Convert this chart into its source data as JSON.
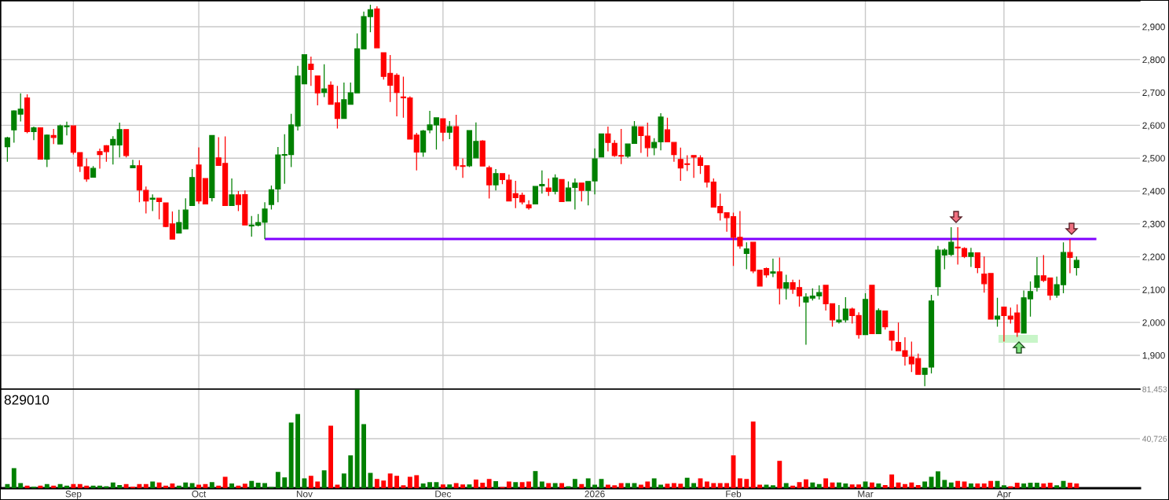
{
  "chart_data": [
    {
      "type": "candlestick",
      "categories": [
        null,
        null,
        null,
        null,
        null,
        null,
        null,
        null,
        null,
        null,
        null,
        null,
        null,
        null,
        null,
        null,
        null,
        null,
        null,
        null,
        null,
        null,
        null,
        null,
        null,
        null,
        null,
        null,
        null,
        null,
        null,
        null,
        null,
        null,
        null,
        null,
        null,
        null,
        null,
        null,
        null,
        null,
        null,
        null,
        null,
        null,
        null,
        null,
        null,
        null,
        null,
        null,
        null,
        null,
        null,
        null,
        null,
        null,
        null,
        null,
        null,
        null,
        null,
        null,
        null,
        null,
        null,
        null,
        null,
        null,
        null,
        null,
        null,
        null,
        null,
        null,
        null,
        null,
        null,
        null,
        null,
        null,
        null,
        null,
        null,
        null,
        null,
        null,
        null,
        null,
        null,
        null,
        null,
        null,
        null,
        null,
        null,
        null,
        null,
        null,
        null,
        null,
        null,
        null,
        null,
        null,
        null,
        null,
        null,
        null,
        null,
        null,
        null,
        null,
        null,
        null,
        null,
        null,
        null,
        null,
        null,
        null,
        null,
        null,
        null,
        null,
        null,
        null,
        null,
        null,
        null,
        null,
        null,
        null,
        null,
        null,
        null,
        null,
        null,
        null,
        null,
        null,
        null,
        null,
        null,
        null,
        null,
        null,
        null,
        null,
        null,
        null,
        null,
        null,
        null,
        null,
        null,
        null,
        null,
        null,
        null,
        null,
        null,
        null,
        null,
        null,
        null,
        null,
        null,
        null,
        null,
        null
      ],
      "ohlc": [
        [
          2535,
          2565,
          2489,
          2562
        ],
        [
          2586,
          2646,
          2547,
          2644
        ],
        [
          2634,
          2697,
          2612,
          2649
        ],
        [
          2683,
          2694,
          2576,
          2581
        ],
        [
          2581,
          2596,
          2555,
          2592
        ],
        [
          2592,
          2592,
          2497,
          2497
        ],
        [
          2497,
          2572,
          2473,
          2570
        ],
        [
          2569,
          2589,
          2543,
          2563
        ],
        [
          2543,
          2602,
          2543,
          2598
        ],
        [
          2596,
          2611,
          2569,
          2598
        ],
        [
          2598,
          2598,
          2511,
          2518
        ],
        [
          2517,
          2517,
          2458,
          2476
        ],
        [
          2474,
          2499,
          2428,
          2437
        ],
        [
          2442,
          2476,
          2442,
          2469
        ],
        [
          2520,
          2529,
          2468,
          2511
        ],
        [
          2538,
          2540,
          2489,
          2520
        ],
        [
          2540,
          2567,
          2481,
          2557
        ],
        [
          2540,
          2608,
          2502,
          2587
        ],
        [
          2587,
          2587,
          2502,
          2508
        ],
        [
          2471,
          2495,
          2471,
          2477
        ],
        [
          2477,
          2494,
          2366,
          2403
        ],
        [
          2402,
          2414,
          2332,
          2370
        ],
        [
          2375,
          2390,
          2339,
          2378
        ],
        [
          2378,
          2378,
          2314,
          2368
        ],
        [
          2364,
          2364,
          2290,
          2292
        ],
        [
          2300,
          2338,
          2254,
          2254
        ],
        [
          2272,
          2343,
          2272,
          2304
        ],
        [
          2285,
          2378,
          2285,
          2342
        ],
        [
          2356,
          2467,
          2356,
          2441
        ],
        [
          2479,
          2533,
          2361,
          2370
        ],
        [
          2438,
          2438,
          2361,
          2361
        ],
        [
          2380,
          2569,
          2368,
          2569
        ],
        [
          2501,
          2564,
          2478,
          2478
        ],
        [
          2484,
          2566,
          2356,
          2356
        ],
        [
          2356,
          2438,
          2356,
          2388
        ],
        [
          2388,
          2400,
          2339,
          2359
        ],
        [
          2389,
          2402,
          2297,
          2297
        ],
        [
          2294,
          2324,
          2261,
          2296
        ],
        [
          2296,
          2330,
          2292,
          2304
        ],
        [
          2305,
          2366,
          2254,
          2345
        ],
        [
          2359,
          2417,
          2344,
          2404
        ],
        [
          2406,
          2534,
          2366,
          2510
        ],
        [
          2509,
          2573,
          2422,
          2511
        ],
        [
          2511,
          2635,
          2473,
          2601
        ],
        [
          2598,
          2781,
          2584,
          2750
        ],
        [
          2726,
          2815,
          2726,
          2815
        ],
        [
          2786,
          2809,
          2720,
          2770
        ],
        [
          2750,
          2750,
          2661,
          2699
        ],
        [
          2700,
          2786,
          2686,
          2711
        ],
        [
          2722,
          2734,
          2664,
          2664
        ],
        [
          2668,
          2720,
          2590,
          2621
        ],
        [
          2621,
          2730,
          2621,
          2678
        ],
        [
          2664,
          2730,
          2664,
          2699
        ],
        [
          2699,
          2880,
          2699,
          2833
        ],
        [
          2833,
          2946,
          2833,
          2931
        ],
        [
          2931,
          2967,
          2883,
          2952
        ],
        [
          2954,
          2962,
          2836,
          2836
        ],
        [
          2821,
          2821,
          2739,
          2749
        ],
        [
          2758,
          2814,
          2671,
          2722
        ],
        [
          2752,
          2758,
          2627,
          2700
        ],
        [
          2686,
          2748,
          2623,
          2684
        ],
        [
          2683,
          2688,
          2558,
          2558
        ],
        [
          2570,
          2577,
          2463,
          2519
        ],
        [
          2519,
          2586,
          2504,
          2583
        ],
        [
          2586,
          2644,
          2576,
          2601
        ],
        [
          2601,
          2623,
          2526,
          2623
        ],
        [
          2620,
          2620,
          2552,
          2579
        ],
        [
          2579,
          2613,
          2558,
          2596
        ],
        [
          2596,
          2632,
          2464,
          2477
        ],
        [
          2477,
          2499,
          2440,
          2475
        ],
        [
          2477,
          2584,
          2473,
          2584
        ],
        [
          2501,
          2609,
          2501,
          2551
        ],
        [
          2552,
          2555,
          2476,
          2476
        ],
        [
          2471,
          2477,
          2377,
          2419
        ],
        [
          2419,
          2467,
          2402,
          2453
        ],
        [
          2453,
          2453,
          2421,
          2435
        ],
        [
          2433,
          2450,
          2370,
          2370
        ],
        [
          2392,
          2431,
          2348,
          2380
        ],
        [
          2387,
          2395,
          2359,
          2367
        ],
        [
          2358,
          2372,
          2343,
          2349
        ],
        [
          2361,
          2414,
          2361,
          2414
        ],
        [
          2416,
          2463,
          2392,
          2420
        ],
        [
          2409,
          2438,
          2385,
          2399
        ],
        [
          2399,
          2451,
          2390,
          2440
        ],
        [
          2435,
          2435,
          2368,
          2368
        ],
        [
          2370,
          2429,
          2370,
          2409
        ],
        [
          2411,
          2438,
          2344,
          2424
        ],
        [
          2424,
          2424,
          2368,
          2402
        ],
        [
          2402,
          2429,
          2356,
          2429
        ],
        [
          2431,
          2530,
          2390,
          2498
        ],
        [
          2504,
          2574,
          2504,
          2574
        ],
        [
          2574,
          2596,
          2521,
          2548
        ],
        [
          2545,
          2555,
          2504,
          2508
        ],
        [
          2508,
          2589,
          2482,
          2506
        ],
        [
          2506,
          2543,
          2501,
          2543
        ],
        [
          2545,
          2613,
          2545,
          2596
        ],
        [
          2595,
          2595,
          2516,
          2569
        ],
        [
          2567,
          2608,
          2504,
          2532
        ],
        [
          2532,
          2561,
          2509,
          2548
        ],
        [
          2550,
          2637,
          2524,
          2625
        ],
        [
          2586,
          2623,
          2550,
          2550
        ],
        [
          2548,
          2548,
          2489,
          2511
        ],
        [
          2496,
          2532,
          2431,
          2470
        ],
        [
          2483,
          2509,
          2461,
          2481
        ],
        [
          2508,
          2508,
          2440,
          2503
        ],
        [
          2501,
          2509,
          2452,
          2478
        ],
        [
          2477,
          2477,
          2411,
          2427
        ],
        [
          2427,
          2438,
          2351,
          2351
        ],
        [
          2353,
          2392,
          2310,
          2334
        ],
        [
          2334,
          2334,
          2276,
          2319
        ],
        [
          2322,
          2334,
          2172,
          2259
        ],
        [
          2259,
          2339,
          2224,
          2233
        ],
        [
          2210,
          2244,
          2162,
          2224
        ],
        [
          2244,
          2244,
          2150,
          2157
        ],
        [
          2159,
          2159,
          2111,
          2111
        ],
        [
          2164,
          2167,
          2136,
          2145
        ],
        [
          2150,
          2194,
          2138,
          2154
        ],
        [
          2154,
          2198,
          2055,
          2104
        ],
        [
          2104,
          2145,
          2070,
          2121
        ],
        [
          2121,
          2130,
          2087,
          2101
        ],
        [
          2106,
          2130,
          2048,
          2081
        ],
        [
          2062,
          2089,
          1932,
          2077
        ],
        [
          2074,
          2104,
          2067,
          2080
        ],
        [
          2081,
          2113,
          2070,
          2091
        ],
        [
          2113,
          2113,
          2036,
          2057
        ],
        [
          2057,
          2057,
          1987,
          2008
        ],
        [
          2002,
          2053,
          1997,
          2007
        ],
        [
          2008,
          2077,
          2000,
          2041
        ],
        [
          2041,
          2045,
          1997,
          2021
        ],
        [
          2021,
          2031,
          1951,
          1963
        ],
        [
          1963,
          2089,
          1963,
          2070
        ],
        [
          2113,
          2113,
          1966,
          1966
        ],
        [
          1966,
          2043,
          1966,
          2036
        ],
        [
          2035,
          2035,
          1978,
          1987
        ],
        [
          1973,
          1973,
          1914,
          1946
        ],
        [
          1939,
          2000,
          1914,
          1914
        ],
        [
          1914,
          1955,
          1869,
          1897
        ],
        [
          1895,
          1942,
          1849,
          1874
        ],
        [
          1890,
          1905,
          1842,
          1842
        ],
        [
          1842,
          1861,
          1806,
          1861
        ],
        [
          1864,
          2084,
          1845,
          2065
        ],
        [
          2109,
          2233,
          2081,
          2220
        ],
        [
          2205,
          2225,
          2162,
          2220
        ],
        [
          2207,
          2290,
          2202,
          2244
        ],
        [
          2229,
          2290,
          2176,
          2227
        ],
        [
          2225,
          2229,
          2196,
          2201
        ],
        [
          2201,
          2227,
          2169,
          2212
        ],
        [
          2212,
          2212,
          2150,
          2167
        ],
        [
          2147,
          2201,
          2091,
          2118
        ],
        [
          2149,
          2149,
          2010,
          2010
        ],
        [
          2010,
          2075,
          1987,
          2019
        ],
        [
          2047,
          2047,
          1942,
          2021
        ],
        [
          2019,
          2045,
          1997,
          2010
        ],
        [
          2029,
          2055,
          1956,
          1970
        ],
        [
          1968,
          2097,
          1968,
          2075
        ],
        [
          2072,
          2125,
          2018,
          2094
        ],
        [
          2107,
          2199,
          2094,
          2142
        ],
        [
          2142,
          2205,
          2123,
          2128
        ],
        [
          2135,
          2135,
          2068,
          2083
        ],
        [
          2083,
          2140,
          2075,
          2115
        ],
        [
          2115,
          2244,
          2089,
          2213
        ],
        [
          2213,
          2254,
          2150,
          2198
        ],
        [
          2167,
          2201,
          2143,
          2189
        ],
        null,
        null,
        null,
        null,
        null,
        null,
        null,
        null,
        null
      ],
      "colors": [
        "#008000",
        "#008000",
        "#008000",
        "#ff0000",
        "#008000",
        "#ff0000",
        "#008000",
        "#ff0000",
        "#008000",
        "#008000",
        "#ff0000",
        "#ff0000",
        "#ff0000",
        "#008000",
        "#ff0000",
        "#ff0000",
        "#008000",
        "#008000",
        "#ff0000",
        "#008000",
        "#ff0000",
        "#ff0000",
        "#008000",
        "#ff0000",
        "#ff0000",
        "#ff0000",
        "#008000",
        "#008000",
        "#008000",
        "#ff0000",
        "#ff0000",
        "#008000",
        "#ff0000",
        "#ff0000",
        "#008000",
        "#ff0000",
        "#ff0000",
        "#008000",
        "#008000",
        "#008000",
        "#008000",
        "#008000",
        "#008000",
        "#008000",
        "#008000",
        "#008000",
        "#ff0000",
        "#ff0000",
        "#008000",
        "#ff0000",
        "#ff0000",
        "#008000",
        "#008000",
        "#008000",
        "#008000",
        "#008000",
        "#ff0000",
        "#ff0000",
        "#ff0000",
        "#ff0000",
        "#ff0000",
        "#ff0000",
        "#ff0000",
        "#008000",
        "#008000",
        "#008000",
        "#ff0000",
        "#008000",
        "#ff0000",
        "#ff0000",
        "#008000",
        "#008000",
        "#ff0000",
        "#ff0000",
        "#008000",
        "#ff0000",
        "#ff0000",
        "#ff0000",
        "#ff0000",
        "#ff0000",
        "#008000",
        "#008000",
        "#ff0000",
        "#008000",
        "#ff0000",
        "#008000",
        "#008000",
        "#ff0000",
        "#008000",
        "#008000",
        "#008000",
        "#ff0000",
        "#ff0000",
        "#ff0000",
        "#008000",
        "#008000",
        "#ff0000",
        "#ff0000",
        "#008000",
        "#008000",
        "#ff0000",
        "#ff0000",
        "#ff0000",
        "#ff0000",
        "#ff0000",
        "#ff0000",
        "#ff0000",
        "#ff0000",
        "#ff0000",
        "#ff0000",
        "#ff0000",
        "#ff0000",
        "#008000",
        "#ff0000",
        "#ff0000",
        "#ff0000",
        "#008000",
        "#ff0000",
        "#008000",
        "#ff0000",
        "#ff0000",
        "#008000",
        "#008000",
        "#008000",
        "#ff0000",
        "#ff0000",
        "#008000",
        "#008000",
        "#ff0000",
        "#ff0000",
        "#008000",
        "#ff0000",
        "#008000",
        "#ff0000",
        "#ff0000",
        "#ff0000",
        "#ff0000",
        "#ff0000",
        "#ff0000",
        "#008000",
        "#008000",
        "#008000",
        "#008000",
        "#008000",
        "#ff0000",
        "#ff0000",
        "#008000",
        "#ff0000",
        "#ff0000",
        "#ff0000",
        "#008000",
        "#ff0000",
        "#ff0000",
        "#ff0000",
        "#008000",
        "#008000",
        "#008000",
        "#ff0000",
        "#ff0000",
        "#008000",
        "#008000",
        "#ff0000",
        "#008000",
        null,
        null,
        null,
        null,
        null,
        null,
        null,
        null,
        null
      ],
      "series": [
        {
          "type": "line",
          "color": "#8000ff",
          "values": [
            null,
            null,
            null,
            null,
            null,
            null,
            null,
            null,
            null,
            null,
            null,
            null,
            null,
            null,
            null,
            null,
            null,
            null,
            null,
            null,
            null,
            null,
            null,
            null,
            null,
            null,
            null,
            null,
            null,
            null,
            null,
            null,
            null,
            null,
            null,
            null,
            null,
            null,
            null,
            2254,
            2254,
            2254,
            2254,
            2254,
            2254,
            2254,
            2254,
            2254,
            2254,
            2254,
            2254,
            2254,
            2254,
            2254,
            2254,
            2254,
            2254,
            2254,
            2254,
            2254,
            2254,
            2254,
            2254,
            2254,
            2254,
            2254,
            2254,
            2254,
            2254,
            2254,
            2254,
            2254,
            2254,
            2254,
            2254,
            2254,
            2254,
            2254,
            2254,
            2254,
            2254,
            2254,
            2254,
            2254,
            2254,
            2254,
            2254,
            2254,
            2254,
            2254,
            2254,
            2254,
            2254,
            2254,
            2254,
            2254,
            2254,
            2254,
            2254,
            2254,
            2254,
            2254,
            2254,
            2254,
            2254,
            2254,
            2254,
            2254,
            2254,
            2254,
            2254,
            2254,
            2254,
            2254,
            2254,
            2254,
            2254,
            2254,
            2254,
            2254,
            2254,
            2254,
            2254,
            2254,
            2254,
            2254,
            2254,
            2254,
            2254,
            2254,
            2254,
            2254,
            2254,
            2254,
            2254,
            2254,
            2254,
            2254,
            2254,
            2254,
            2254,
            2254,
            2254,
            2254,
            2254,
            2254,
            2254,
            2254,
            2254,
            2254,
            2254,
            2254,
            2254,
            2254,
            2254,
            2254,
            2254,
            2254,
            2254,
            2254,
            2254,
            2254,
            2254,
            2254,
            2254,
            2254,
            null,
            null,
            null,
            null,
            null,
            null
          ]
        }
      ],
      "ylim": [
        1797,
        2979
      ],
      "yticks": [
        {
          "value": 1900,
          "label": "1,900"
        },
        {
          "value": 2000,
          "label": "2,000"
        },
        {
          "value": 2100,
          "label": "2,100"
        },
        {
          "value": 2200,
          "label": "2,200"
        },
        {
          "value": 2300,
          "label": "2,300"
        },
        {
          "value": 2400,
          "label": "2,400"
        },
        {
          "value": 2500,
          "label": "2,500"
        },
        {
          "value": 2600,
          "label": "2,600"
        },
        {
          "value": 2700,
          "label": "2,700"
        },
        {
          "value": 2800,
          "label": "2,800"
        },
        {
          "value": 2900,
          "label": "2,900"
        }
      ],
      "grid": true,
      "tick_labels": "y"
    },
    {
      "type": "bar",
      "title": "829010",
      "categories": [
        null,
        null,
        null,
        null,
        null,
        null,
        null,
        null,
        null,
        null,
        "Sep",
        null,
        null,
        null,
        null,
        null,
        null,
        null,
        null,
        null,
        null,
        null,
        null,
        null,
        null,
        null,
        null,
        null,
        null,
        "Oct",
        null,
        null,
        null,
        null,
        null,
        null,
        null,
        null,
        null,
        null,
        null,
        null,
        null,
        null,
        null,
        "Nov",
        null,
        null,
        null,
        null,
        null,
        null,
        null,
        null,
        null,
        null,
        null,
        null,
        null,
        null,
        null,
        null,
        null,
        null,
        null,
        null,
        "Dec",
        null,
        null,
        null,
        null,
        null,
        null,
        null,
        null,
        null,
        null,
        null,
        null,
        null,
        null,
        null,
        null,
        null,
        null,
        null,
        null,
        null,
        null,
        "2026",
        null,
        null,
        null,
        null,
        null,
        null,
        null,
        null,
        null,
        null,
        null,
        null,
        null,
        null,
        null,
        null,
        null,
        null,
        null,
        null,
        "Feb",
        null,
        null,
        null,
        null,
        null,
        null,
        null,
        null,
        null,
        null,
        null,
        null,
        null,
        null,
        null,
        null,
        null,
        null,
        null,
        "Mar",
        null,
        null,
        null,
        null,
        null,
        null,
        null,
        null,
        null,
        null,
        null,
        null,
        null,
        null,
        null,
        null,
        null,
        null,
        null,
        null,
        "Apr",
        null,
        null,
        null,
        null,
        null,
        null,
        null,
        null,
        null,
        null,
        null,
        null,
        null,
        null,
        null,
        null,
        null,
        null,
        null,
        null
      ],
      "values": [
        3400,
        16500,
        4200,
        2100,
        1300,
        2100,
        3400,
        2100,
        3400,
        2100,
        3400,
        3400,
        2100,
        2100,
        2100,
        1600,
        4700,
        2600,
        3400,
        1300,
        3400,
        3400,
        5500,
        4700,
        2100,
        3900,
        2100,
        4700,
        4200,
        2900,
        3400,
        5000,
        2100,
        9400,
        3900,
        2100,
        3700,
        6000,
        4500,
        4200,
        1000,
        13400,
        8900,
        54000,
        61000,
        8100,
        10200,
        5500,
        14700,
        51400,
        2900,
        12100,
        27000,
        81000,
        52700,
        12600,
        7600,
        6300,
        12100,
        10200,
        2400,
        9400,
        10700,
        3900,
        5000,
        5000,
        3100,
        3100,
        4200,
        3100,
        3100,
        7100,
        4500,
        7600,
        5800,
        1000,
        5500,
        5000,
        5000,
        5500,
        14100,
        5500,
        4200,
        4200,
        4200,
        1600,
        7600,
        3400,
        8100,
        2900,
        7600,
        2900,
        2400,
        4200,
        4200,
        4200,
        2900,
        5500,
        8100,
        2900,
        3700,
        4200,
        3700,
        8600,
        4200,
        8100,
        5500,
        4200,
        4200,
        4200,
        27000,
        8100,
        7600,
        54800,
        2900,
        2900,
        2400,
        22500,
        4200,
        2100,
        5000,
        7300,
        4700,
        3400,
        8100,
        4700,
        4700,
        3900,
        3100,
        3100,
        5500,
        4700,
        3900,
        2600,
        11300,
        4700,
        3400,
        4700,
        2600,
        5500,
        9400,
        13900,
        6800,
        4700,
        6000,
        5500,
        3900,
        3900,
        3900,
        6000,
        6000,
        2400,
        1600,
        4500,
        3900,
        4500,
        4500,
        3900,
        4500,
        2400,
        6000,
        4500,
        3900,
        null,
        null,
        null,
        null,
        null,
        null,
        null,
        null,
        null
      ],
      "colors": [
        "#008000",
        "#008000",
        "#008000",
        "#ff0000",
        "#008000",
        "#ff0000",
        "#008000",
        "#ff0000",
        "#008000",
        "#008000",
        "#ff0000",
        "#ff0000",
        "#ff0000",
        "#008000",
        "#008000",
        "#008000",
        "#008000",
        "#008000",
        "#ff0000",
        "#ff0000",
        "#ff0000",
        "#ff0000",
        "#008000",
        "#ff0000",
        "#ff0000",
        "#ff0000",
        "#008000",
        "#008000",
        "#008000",
        "#ff0000",
        "#ff0000",
        "#008000",
        "#ff0000",
        "#ff0000",
        "#008000",
        "#ff0000",
        "#ff0000",
        "#008000",
        "#008000",
        "#008000",
        "#008000",
        "#008000",
        "#008000",
        "#008000",
        "#008000",
        "#008000",
        "#ff0000",
        "#ff0000",
        "#008000",
        "#ff0000",
        "#ff0000",
        "#008000",
        "#008000",
        "#008000",
        "#008000",
        "#008000",
        "#ff0000",
        "#ff0000",
        "#ff0000",
        "#ff0000",
        "#ff0000",
        "#ff0000",
        "#ff0000",
        "#008000",
        "#008000",
        "#008000",
        "#ff0000",
        "#008000",
        "#ff0000",
        "#ff0000",
        "#008000",
        "#ff0000",
        "#ff0000",
        "#ff0000",
        "#008000",
        "#ff0000",
        "#ff0000",
        "#008000",
        "#ff0000",
        "#ff0000",
        "#008000",
        "#008000",
        "#ff0000",
        "#008000",
        "#ff0000",
        "#008000",
        "#008000",
        "#ff0000",
        "#008000",
        "#008000",
        "#008000",
        "#ff0000",
        "#ff0000",
        "#ff0000",
        "#008000",
        "#008000",
        "#ff0000",
        "#ff0000",
        "#008000",
        "#008000",
        "#ff0000",
        "#ff0000",
        "#ff0000",
        "#008000",
        "#008000",
        "#ff0000",
        "#ff0000",
        "#ff0000",
        "#ff0000",
        "#ff0000",
        "#ff0000",
        "#ff0000",
        "#ff0000",
        "#ff0000",
        "#ff0000",
        "#008000",
        "#008000",
        "#ff0000",
        "#008000",
        "#ff0000",
        "#ff0000",
        "#ff0000",
        "#008000",
        "#008000",
        "#ff0000",
        "#ff0000",
        "#008000",
        "#008000",
        "#ff0000",
        "#ff0000",
        "#008000",
        "#ff0000",
        "#008000",
        "#ff0000",
        "#ff0000",
        "#ff0000",
        "#ff0000",
        "#ff0000",
        "#ff0000",
        "#008000",
        "#008000",
        "#008000",
        "#008000",
        "#008000",
        "#ff0000",
        "#ff0000",
        "#008000",
        "#ff0000",
        "#ff0000",
        "#ff0000",
        "#008000",
        "#008000",
        "#ff0000",
        "#ff0000",
        "#008000",
        "#008000",
        "#008000",
        "#ff0000",
        "#ff0000",
        "#008000",
        "#008000",
        "#ff0000",
        "#ff0000",
        null,
        null,
        null,
        null,
        null,
        null,
        null,
        null,
        null
      ],
      "ylim": [
        0,
        81453
      ],
      "yticks": [
        {
          "value": 40726,
          "label": "40,726"
        },
        {
          "value": 81453,
          "label": "81,453"
        }
      ],
      "grid": true
    }
  ]
}
